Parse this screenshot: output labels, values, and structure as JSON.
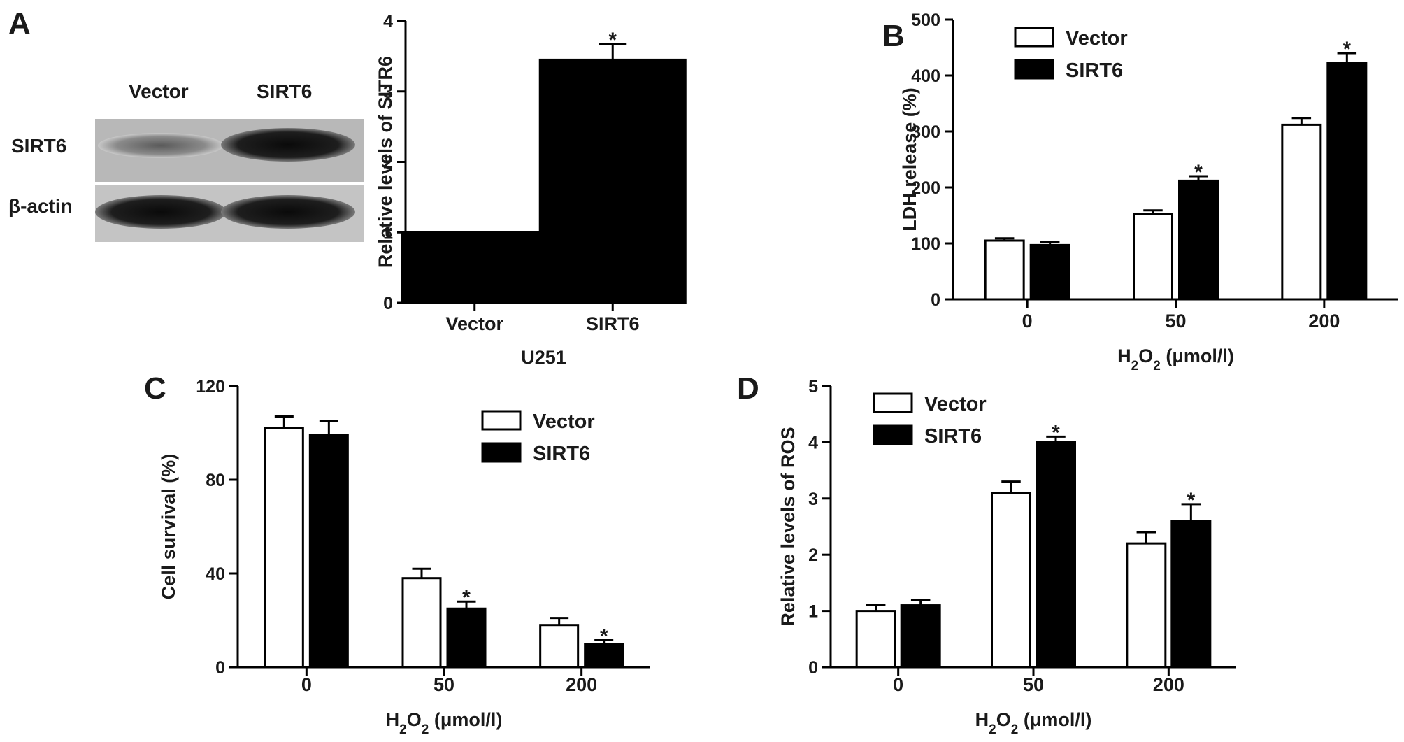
{
  "panels": {
    "A": "A",
    "B": "B",
    "C": "C",
    "D": "D"
  },
  "blot": {
    "lanes": [
      "Vector",
      "SIRT6"
    ],
    "rows": [
      "SIRT6",
      "β-actin"
    ]
  },
  "legend": {
    "vector": "Vector",
    "sirt6": "SIRT6"
  },
  "significance_marker": "*",
  "chart_data": [
    {
      "id": "A",
      "type": "bar",
      "categories": [
        "Vector",
        "SIRT6"
      ],
      "values": [
        1.0,
        3.45
      ],
      "errors": [
        0,
        0.22
      ],
      "significant": [
        false,
        true
      ],
      "ylabel": "Relative levels of SITR6",
      "xlabel": "U251",
      "ylim": [
        0,
        4
      ],
      "yticks": [
        0,
        1,
        2,
        3,
        4
      ],
      "colors": [
        "#000000",
        "#000000"
      ]
    },
    {
      "id": "B",
      "type": "bar",
      "categories": [
        "0",
        "50",
        "200"
      ],
      "series": [
        {
          "key": "vector",
          "values": [
            105,
            152,
            312
          ],
          "errors": [
            4,
            7,
            12
          ],
          "significant": [
            false,
            false,
            false
          ]
        },
        {
          "key": "sirt6",
          "values": [
            97,
            212,
            422
          ],
          "errors": [
            6,
            8,
            18
          ],
          "significant": [
            false,
            true,
            true
          ]
        }
      ],
      "ylabel": "LDH release (%)",
      "xlabel": "H2O2 (μmol/l)",
      "xlabel_base": "H",
      "xlabel_sub": "2",
      "xlabel_mid": "O",
      "xlabel_sub2": "2",
      "xlabel_rest": " (μmol/l)",
      "ylim": [
        0,
        500
      ],
      "yticks": [
        0,
        100,
        200,
        300,
        400,
        500
      ],
      "legend_position": "top-left"
    },
    {
      "id": "C",
      "type": "bar",
      "categories": [
        "0",
        "50",
        "200"
      ],
      "series": [
        {
          "key": "vector",
          "values": [
            102,
            38,
            18
          ],
          "errors": [
            5,
            4,
            3
          ],
          "significant": [
            false,
            false,
            false
          ]
        },
        {
          "key": "sirt6",
          "values": [
            99,
            25,
            10
          ],
          "errors": [
            6,
            3,
            1.5
          ],
          "significant": [
            false,
            true,
            true
          ]
        }
      ],
      "ylabel": "Cell survival (%)",
      "xlabel": "H2O2 (μmol/l)",
      "xlabel_base": "H",
      "xlabel_sub": "2",
      "xlabel_mid": "O",
      "xlabel_sub2": "2",
      "xlabel_rest": " (μmol/l)",
      "ylim": [
        0,
        120
      ],
      "yticks": [
        0,
        40,
        80,
        120
      ],
      "legend_position": "top-right"
    },
    {
      "id": "D",
      "type": "bar",
      "categories": [
        "0",
        "50",
        "200"
      ],
      "series": [
        {
          "key": "vector",
          "values": [
            1.0,
            3.1,
            2.2
          ],
          "errors": [
            0.1,
            0.2,
            0.2
          ],
          "significant": [
            false,
            false,
            false
          ]
        },
        {
          "key": "sirt6",
          "values": [
            1.1,
            4.0,
            2.6
          ],
          "errors": [
            0.1,
            0.1,
            0.3
          ],
          "significant": [
            false,
            true,
            true
          ]
        }
      ],
      "ylabel": "Relative levels of ROS",
      "xlabel": "H2O2 (μmol/l)",
      "xlabel_base": "H",
      "xlabel_sub": "2",
      "xlabel_mid": "O",
      "xlabel_sub2": "2",
      "xlabel_rest": " (μmol/l)",
      "ylim": [
        0,
        5
      ],
      "yticks": [
        0,
        1,
        2,
        3,
        4,
        5
      ],
      "legend_position": "top-left"
    }
  ]
}
